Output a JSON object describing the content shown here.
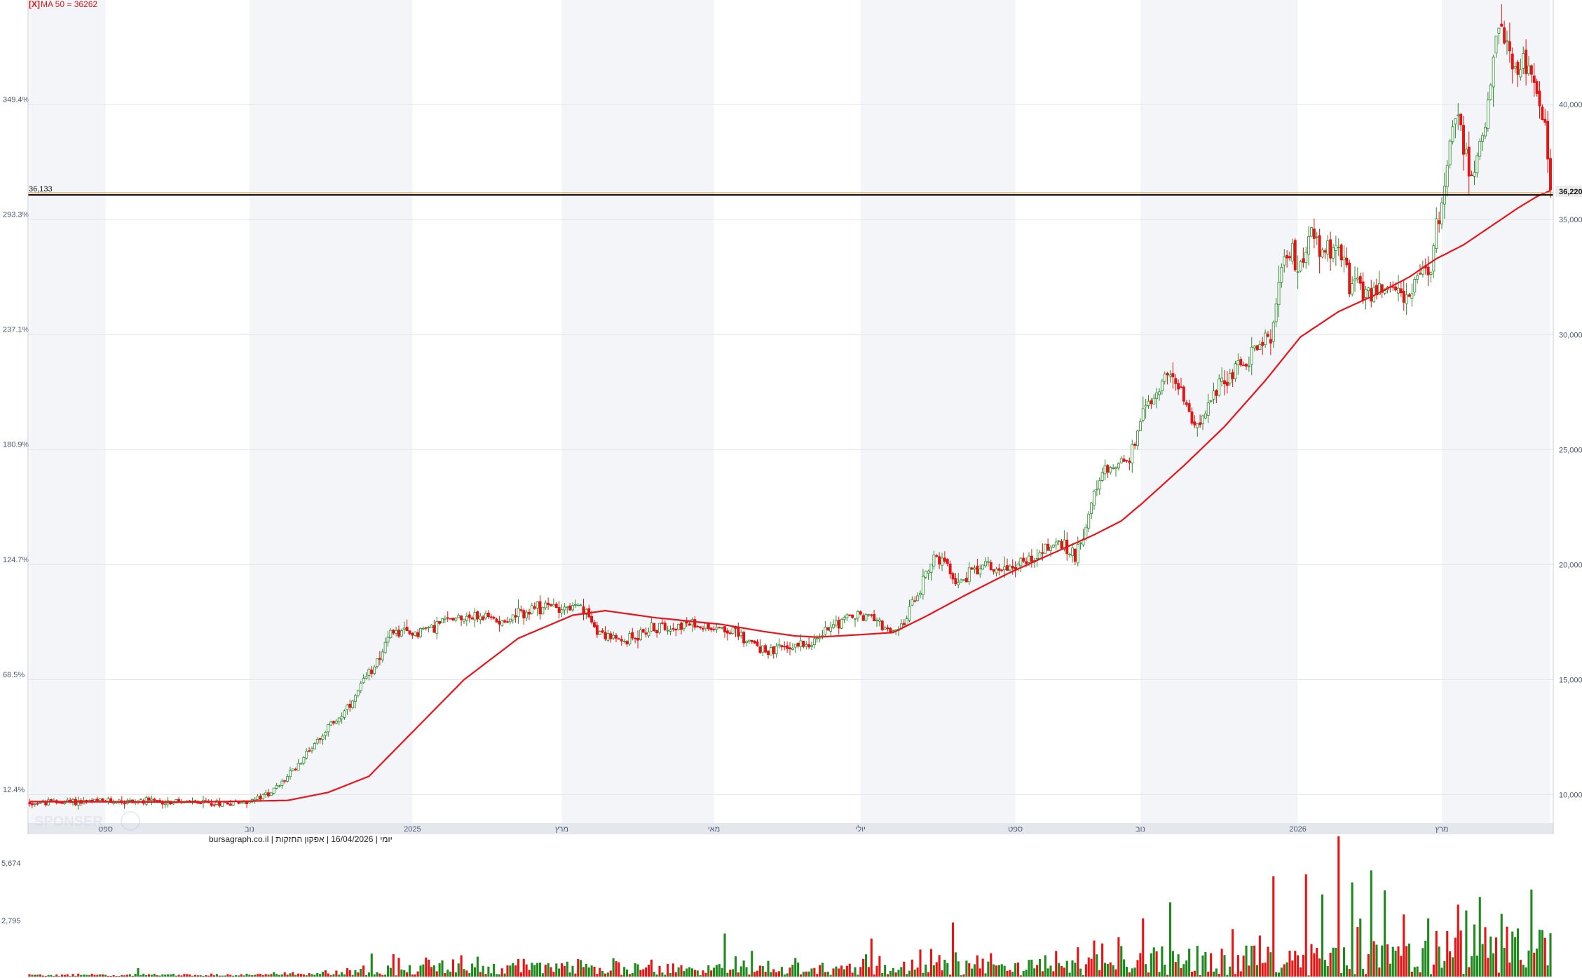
{
  "chart_data": {
    "type": "candlestick",
    "legend": {
      "toggle": "[X]",
      "label": "MA 50 = 36262",
      "ma_period": 50,
      "ma_value": 36262
    },
    "footer_text": "יומי | 16/04/2026 | אפקון החזקות | bursagraph.co.il",
    "watermark": "SPONSER",
    "price_axis": {
      "ylim": [
        8950,
        44300
      ],
      "ticks": [
        {
          "value": 10000,
          "label": "10,000"
        },
        {
          "value": 15000,
          "label": "15,000"
        },
        {
          "value": 20000,
          "label": "20,000"
        },
        {
          "value": 25000,
          "label": "25,000"
        },
        {
          "value": 30000,
          "label": "30,000"
        },
        {
          "value": 35000,
          "label": "35,000"
        },
        {
          "value": 40000,
          "label": "40,000"
        }
      ]
    },
    "percent_axis": {
      "ticks": [
        {
          "value": 10050,
          "label": "12.4%"
        },
        {
          "value": 15050,
          "label": "68.5%"
        },
        {
          "value": 20050,
          "label": "124.7%"
        },
        {
          "value": 25050,
          "label": "180.9%"
        },
        {
          "value": 30050,
          "label": "237.1%"
        },
        {
          "value": 35050,
          "label": "293.3%"
        },
        {
          "value": 40050,
          "label": "349.4%"
        }
      ]
    },
    "reference_line": {
      "value": 36133,
      "label": "36,133"
    },
    "last_price": {
      "value": 36220,
      "label": "36,220"
    },
    "time_axis": {
      "ticks": [
        {
          "index": 28,
          "label": "ספט"
        },
        {
          "index": 81,
          "label": "נוב"
        },
        {
          "index": 141,
          "label": "2025"
        },
        {
          "index": 196,
          "label": "מרץ"
        },
        {
          "index": 252,
          "label": "מאי"
        },
        {
          "index": 306,
          "label": "יולי"
        },
        {
          "index": 363,
          "label": "ספט"
        },
        {
          "index": 409,
          "label": "נוב"
        },
        {
          "index": 467,
          "label": "2026"
        },
        {
          "index": 520,
          "label": "מרץ"
        }
      ]
    },
    "volume_axis": {
      "ymax": 6400,
      "ticks": [
        {
          "value": 2795,
          "label": "2,795"
        },
        {
          "value": 5674,
          "label": "5,674"
        }
      ]
    },
    "price_path": [
      [
        0,
        9650
      ],
      [
        30,
        9720
      ],
      [
        45,
        9700
      ],
      [
        70,
        9640
      ],
      [
        80,
        9700
      ],
      [
        85,
        9850
      ],
      [
        92,
        10400
      ],
      [
        98,
        11200
      ],
      [
        108,
        12700
      ],
      [
        118,
        13800
      ],
      [
        128,
        15900
      ],
      [
        134,
        17100
      ],
      [
        140,
        17000
      ],
      [
        148,
        17300
      ],
      [
        158,
        17800
      ],
      [
        175,
        17600
      ],
      [
        190,
        18200
      ],
      [
        203,
        18100
      ],
      [
        210,
        17100
      ],
      [
        218,
        16600
      ],
      [
        226,
        17100
      ],
      [
        237,
        17400
      ],
      [
        255,
        17300
      ],
      [
        262,
        16900
      ],
      [
        272,
        16200
      ],
      [
        282,
        16500
      ],
      [
        290,
        16700
      ],
      [
        296,
        17500
      ],
      [
        305,
        17800
      ],
      [
        312,
        17700
      ],
      [
        318,
        16900
      ],
      [
        322,
        17500
      ],
      [
        328,
        19000
      ],
      [
        333,
        20400
      ],
      [
        338,
        19800
      ],
      [
        342,
        19200
      ],
      [
        350,
        20000
      ],
      [
        358,
        19800
      ],
      [
        368,
        20200
      ],
      [
        378,
        21000
      ],
      [
        385,
        20400
      ],
      [
        395,
        23900
      ],
      [
        402,
        24600
      ],
      [
        405,
        24500
      ],
      [
        410,
        26500
      ],
      [
        418,
        28300
      ],
      [
        424,
        27500
      ],
      [
        428,
        26200
      ],
      [
        434,
        26800
      ],
      [
        440,
        28200
      ],
      [
        448,
        28900
      ],
      [
        454,
        29800
      ],
      [
        458,
        30200
      ],
      [
        462,
        33800
      ],
      [
        468,
        33100
      ],
      [
        472,
        34400
      ],
      [
        476,
        33500
      ],
      [
        482,
        34000
      ],
      [
        486,
        32200
      ],
      [
        492,
        31800
      ],
      [
        500,
        32000
      ],
      [
        508,
        31700
      ],
      [
        516,
        33100
      ],
      [
        520,
        35900
      ],
      [
        525,
        39800
      ],
      [
        531,
        37000
      ],
      [
        536,
        39100
      ],
      [
        541,
        43200
      ],
      [
        546,
        41800
      ],
      [
        550,
        41900
      ],
      [
        554,
        40800
      ],
      [
        558,
        38700
      ],
      [
        560,
        36300
      ]
    ],
    "candle_count": 561,
    "ma_path": [
      [
        0,
        9700
      ],
      [
        60,
        9680
      ],
      [
        95,
        9750
      ],
      [
        110,
        10100
      ],
      [
        125,
        10800
      ],
      [
        140,
        12600
      ],
      [
        160,
        15000
      ],
      [
        180,
        16800
      ],
      [
        200,
        17800
      ],
      [
        212,
        18000
      ],
      [
        230,
        17700
      ],
      [
        255,
        17400
      ],
      [
        270,
        17100
      ],
      [
        282,
        16900
      ],
      [
        290,
        16850
      ],
      [
        305,
        16950
      ],
      [
        318,
        17050
      ],
      [
        330,
        17750
      ],
      [
        345,
        18700
      ],
      [
        360,
        19600
      ],
      [
        375,
        20400
      ],
      [
        392,
        21300
      ],
      [
        402,
        21900
      ],
      [
        410,
        22700
      ],
      [
        425,
        24300
      ],
      [
        440,
        26000
      ],
      [
        455,
        28000
      ],
      [
        468,
        29900
      ],
      [
        482,
        31000
      ],
      [
        495,
        31700
      ],
      [
        508,
        32500
      ],
      [
        518,
        33300
      ],
      [
        528,
        33900
      ],
      [
        538,
        34700
      ],
      [
        548,
        35500
      ],
      [
        555,
        36000
      ],
      [
        560,
        36262
      ]
    ],
    "volume_spikes": [
      [
        40,
        420
      ],
      [
        126,
        1150
      ],
      [
        134,
        1120
      ],
      [
        256,
        2150
      ],
      [
        266,
        1280
      ],
      [
        310,
        1900
      ],
      [
        332,
        1380
      ],
      [
        340,
        2700
      ],
      [
        410,
        2900
      ],
      [
        420,
        3700
      ],
      [
        458,
        5000
      ],
      [
        470,
        5100
      ],
      [
        476,
        4100
      ],
      [
        482,
        7000
      ],
      [
        487,
        4700
      ],
      [
        494,
        5300
      ],
      [
        499,
        4300
      ],
      [
        506,
        3100
      ],
      [
        515,
        2900
      ],
      [
        529,
        3300
      ],
      [
        538,
        2000
      ],
      [
        548,
        2400
      ]
    ]
  }
}
